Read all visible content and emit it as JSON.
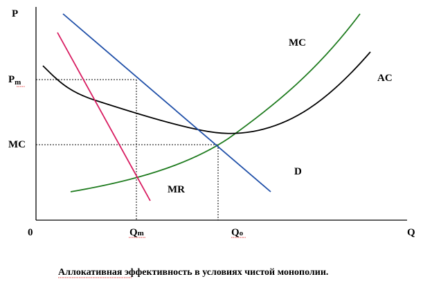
{
  "axes": {
    "y_label": "P",
    "x_label": "Q",
    "origin_label": "0"
  },
  "y_ticks": {
    "pm": "P",
    "pm_sub": "m",
    "mc": "MC"
  },
  "x_ticks": {
    "qm": "Q",
    "qm_sub": "m",
    "qo": "Q",
    "qo_sub": "o"
  },
  "curves": {
    "mc": {
      "label": "MC",
      "color": "#1e7b1e"
    },
    "ac": {
      "label": "AC",
      "color": "#000000"
    },
    "d": {
      "label": "D",
      "color": "#1f4fa8"
    },
    "mr": {
      "label": "MR",
      "color": "#d81b60"
    }
  },
  "caption": "Аллокативная эффективность в условиях чистой монополии."
}
